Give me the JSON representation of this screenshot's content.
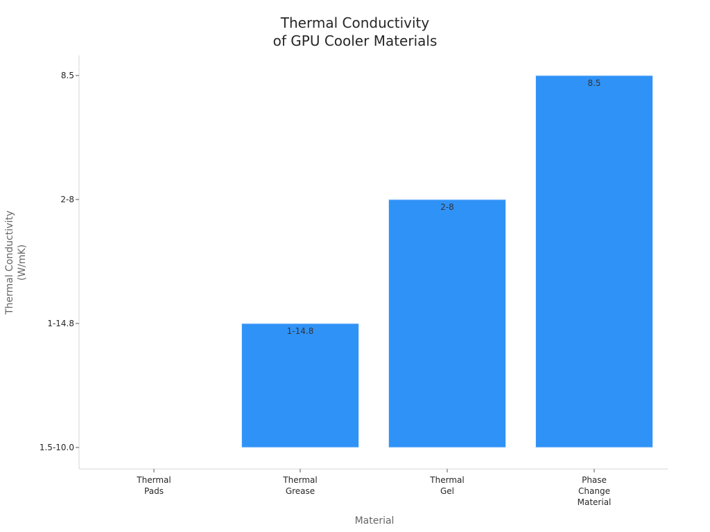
{
  "chart_data": {
    "type": "bar",
    "title": [
      "Thermal Conductivity",
      "of GPU Cooler Materials"
    ],
    "xlabel": "Material",
    "ylabel": [
      "Thermal Conductivity",
      "(W/mK)"
    ],
    "categories": [
      [
        "Thermal",
        "Pads"
      ],
      [
        "Thermal",
        "Grease"
      ],
      [
        "Thermal",
        "Gel"
      ],
      [
        "Phase",
        "Change",
        "Material"
      ]
    ],
    "y_ticks": [
      "1.5-10.0",
      "1-14.8",
      "2-8",
      "8.5"
    ],
    "values": [
      "1.5-10.0",
      "1-14.8",
      "2-8",
      "8.5"
    ],
    "data_labels": [
      "",
      "1-14.8",
      "2-8",
      "8.5"
    ],
    "y_axis_type": "categorical",
    "grid": false,
    "legend": "none",
    "bar_color": "#2f92f7"
  }
}
